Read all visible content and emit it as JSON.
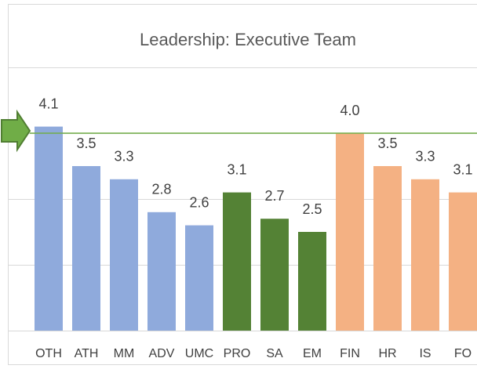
{
  "chart_data": {
    "type": "bar",
    "title": "Leadership: Executive Team",
    "categories": [
      "OTH",
      "ATH",
      "MM",
      "ADV",
      "UMC",
      "PRO",
      "SA",
      "EM",
      "FIN",
      "HR",
      "IS",
      "FO"
    ],
    "values": [
      4.1,
      3.5,
      3.3,
      2.8,
      2.6,
      3.1,
      2.7,
      2.5,
      4.0,
      3.5,
      3.3,
      3.1
    ],
    "value_labels": [
      "4.1",
      "3.5",
      "3.3",
      "2.8",
      "2.6",
      "3.1",
      "2.7",
      "2.5",
      "4.0",
      "3.5",
      "3.3",
      "3.1"
    ],
    "colors": [
      "#8faadc",
      "#8faadc",
      "#8faadc",
      "#8faadc",
      "#8faadc",
      "#548235",
      "#548235",
      "#548235",
      "#f4b183",
      "#f4b183",
      "#f4b183",
      "#f4b183"
    ],
    "reference_line": {
      "value": 4.0,
      "color": "#70ad47"
    },
    "ylim": [
      1,
      5
    ],
    "yticks": [
      1,
      2,
      3,
      4,
      5
    ],
    "grid": true
  }
}
